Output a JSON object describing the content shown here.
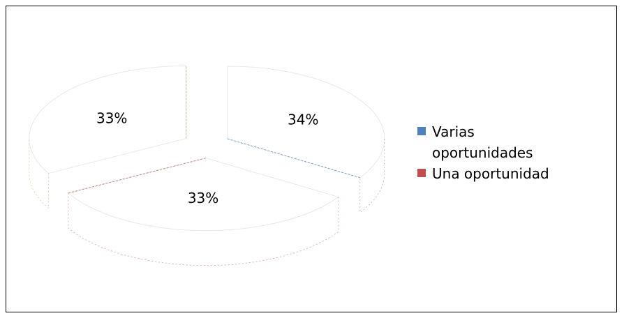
{
  "chart_data": {
    "type": "pie",
    "title": "",
    "categories": [
      "Varias oportunidades",
      "Una oportunidad",
      ""
    ],
    "values": [
      34,
      33,
      33
    ],
    "labels": [
      "34%",
      "33%",
      "33%"
    ],
    "colors": [
      "#4F81BD",
      "#C0504D",
      "#9BBB59"
    ],
    "legend_position": "right",
    "legend": [
      {
        "label": "Varias oportunidades",
        "color": "#4F81BD"
      },
      {
        "label": "Una oportunidad",
        "color": "#C0504D"
      }
    ]
  }
}
